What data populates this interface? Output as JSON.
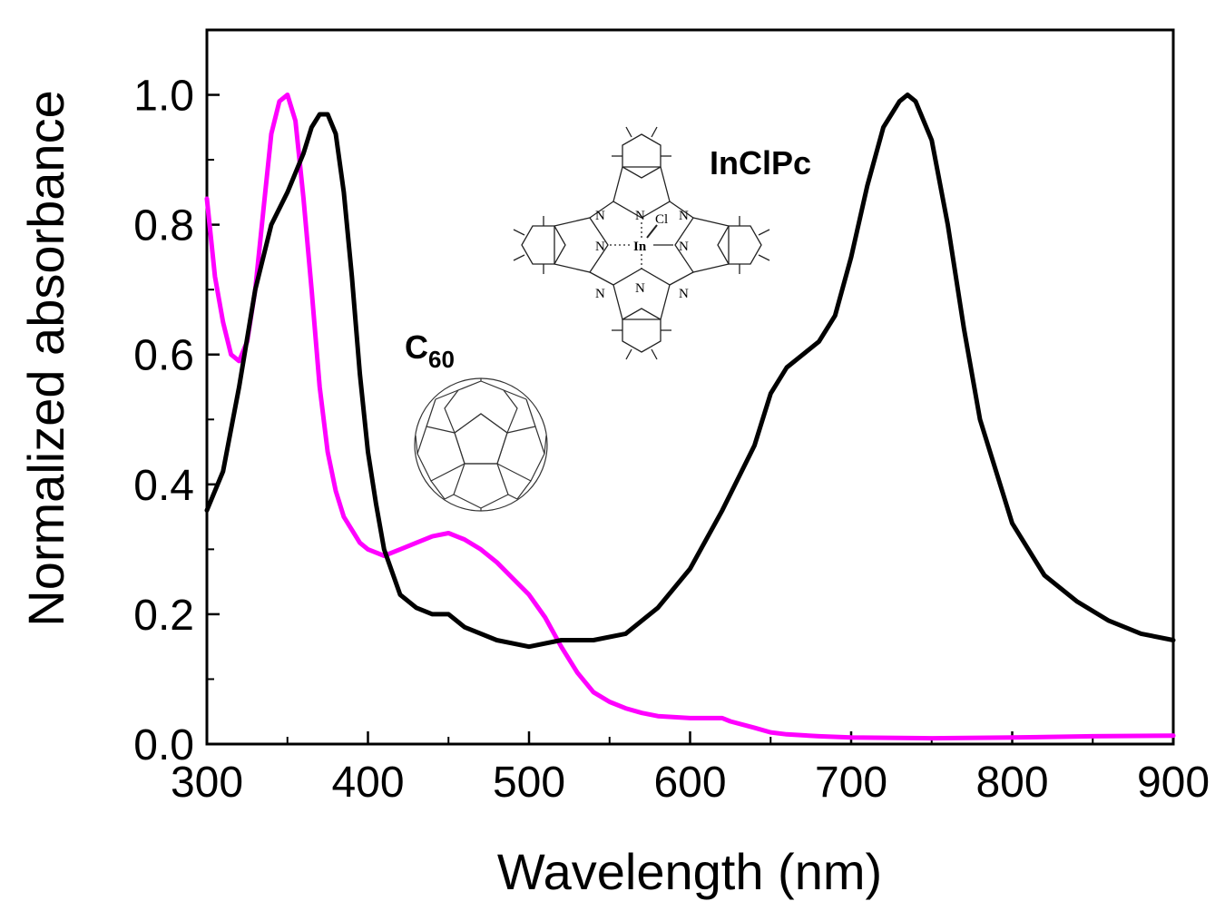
{
  "chart_data": {
    "type": "line",
    "xlabel": "Wavelength (nm)",
    "ylabel": "Normalized absorbance",
    "xlim": [
      300,
      900
    ],
    "ylim": [
      0.0,
      1.1
    ],
    "xticks": [
      "300",
      "400",
      "500",
      "600",
      "700",
      "800",
      "900"
    ],
    "yticks": [
      "0.0",
      "0.2",
      "0.4",
      "0.6",
      "0.8",
      "1.0"
    ],
    "xtick_values": [
      300,
      400,
      500,
      600,
      700,
      800,
      900
    ],
    "ytick_values": [
      0.0,
      0.2,
      0.4,
      0.6,
      0.8,
      1.0
    ],
    "grid": false,
    "series": [
      {
        "name": "C60",
        "color": "#ff00ff",
        "x": [
          300,
          305,
          310,
          315,
          320,
          325,
          330,
          335,
          340,
          345,
          350,
          355,
          360,
          365,
          370,
          375,
          380,
          385,
          390,
          395,
          400,
          410,
          420,
          430,
          440,
          450,
          460,
          470,
          480,
          490,
          500,
          510,
          520,
          530,
          540,
          550,
          560,
          570,
          580,
          600,
          620,
          625,
          640,
          650,
          660,
          680,
          700,
          750,
          800,
          850,
          900
        ],
        "y": [
          0.84,
          0.72,
          0.65,
          0.6,
          0.59,
          0.62,
          0.7,
          0.82,
          0.94,
          0.99,
          1.0,
          0.96,
          0.84,
          0.7,
          0.55,
          0.45,
          0.39,
          0.35,
          0.33,
          0.31,
          0.3,
          0.29,
          0.3,
          0.31,
          0.32,
          0.325,
          0.315,
          0.3,
          0.28,
          0.255,
          0.23,
          0.195,
          0.15,
          0.11,
          0.08,
          0.065,
          0.055,
          0.048,
          0.043,
          0.04,
          0.04,
          0.035,
          0.025,
          0.018,
          0.015,
          0.012,
          0.01,
          0.009,
          0.01,
          0.012,
          0.013
        ]
      },
      {
        "name": "InClPc",
        "color": "#000000",
        "x": [
          300,
          310,
          320,
          330,
          340,
          350,
          360,
          365,
          370,
          375,
          380,
          385,
          390,
          395,
          400,
          405,
          410,
          420,
          430,
          440,
          450,
          460,
          480,
          500,
          520,
          540,
          560,
          570,
          580,
          600,
          620,
          640,
          650,
          660,
          670,
          680,
          690,
          700,
          710,
          720,
          730,
          735,
          740,
          750,
          760,
          770,
          780,
          800,
          820,
          840,
          860,
          880,
          900
        ],
        "y": [
          0.36,
          0.42,
          0.55,
          0.7,
          0.8,
          0.85,
          0.91,
          0.95,
          0.97,
          0.97,
          0.94,
          0.85,
          0.72,
          0.57,
          0.45,
          0.37,
          0.3,
          0.23,
          0.21,
          0.2,
          0.2,
          0.18,
          0.16,
          0.15,
          0.16,
          0.16,
          0.17,
          0.19,
          0.21,
          0.27,
          0.36,
          0.46,
          0.54,
          0.58,
          0.6,
          0.62,
          0.66,
          0.75,
          0.86,
          0.95,
          0.99,
          1.0,
          0.99,
          0.93,
          0.8,
          0.64,
          0.5,
          0.34,
          0.26,
          0.22,
          0.19,
          0.17,
          0.16
        ]
      }
    ],
    "annotations": {
      "c60_label_main": "C",
      "c60_label_sub": "60",
      "inclpc_label": "InClPc",
      "atom_n": "N",
      "atom_in": "In",
      "atom_cl": "Cl"
    }
  }
}
